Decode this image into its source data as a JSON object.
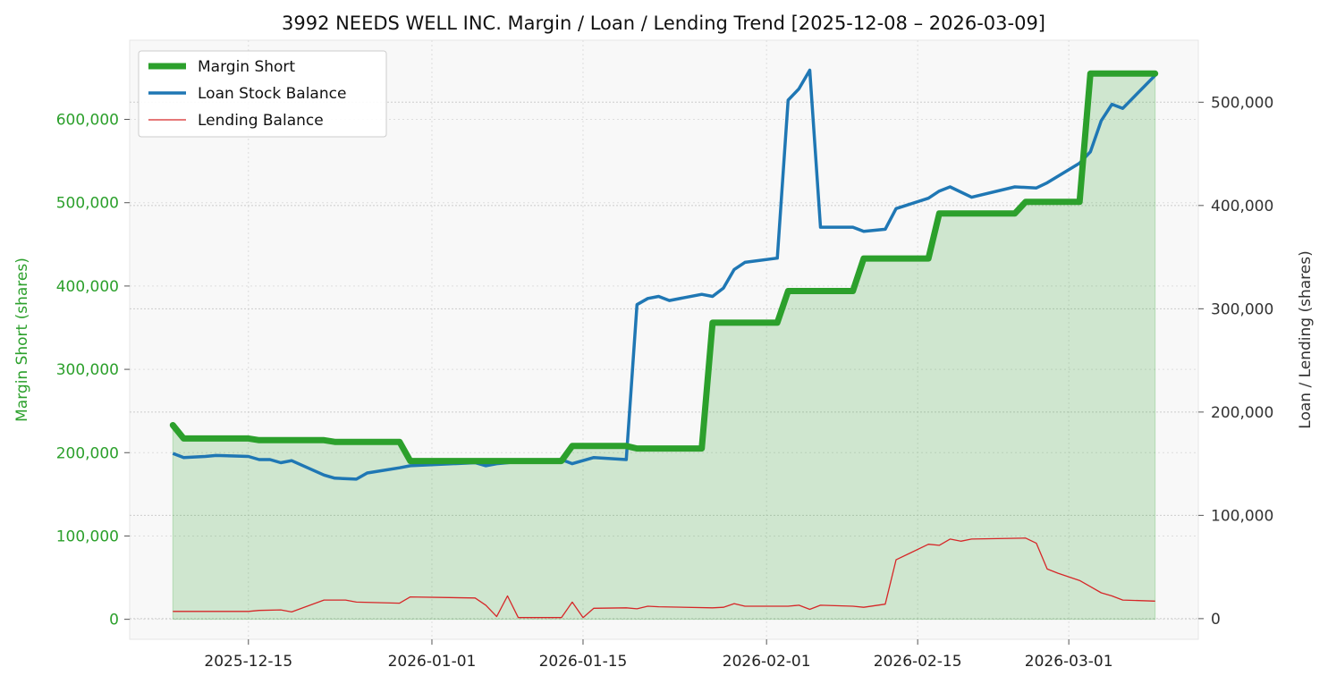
{
  "chart_data": {
    "type": "line",
    "title": "3992 NEEDS WELL INC. Margin / Loan / Lending Trend [2025-12-08 – 2026-03-09]",
    "y_left_label": "Margin Short (shares)",
    "y_right_label": "Loan / Lending (shares)",
    "y_left_ticks": [
      0,
      100000,
      200000,
      300000,
      400000,
      500000,
      600000
    ],
    "y_left_tick_labels": [
      "0",
      "100,000",
      "200,000",
      "300,000",
      "400,000",
      "500,000",
      "600,000"
    ],
    "y_right_ticks": [
      0,
      100000,
      200000,
      300000,
      400000,
      500000
    ],
    "y_right_tick_labels": [
      "0",
      "100,000",
      "200,000",
      "300,000",
      "400,000",
      "500,000"
    ],
    "x_ticks": [
      "2025-12-15",
      "2026-01-01",
      "2026-01-15",
      "2026-02-01",
      "2026-02-15",
      "2026-03-01"
    ],
    "ylim_left": [
      -24000,
      695000
    ],
    "ylim_right": [
      -20000,
      560000
    ],
    "xlim": [
      "2025-12-04",
      "2026-03-13"
    ],
    "grid": true,
    "legend_position": "top-left",
    "series": [
      {
        "name": "Margin Short",
        "axis": "left",
        "color": "#2ca02c",
        "fill": true,
        "points": [
          [
            "2025-12-08",
            233000
          ],
          [
            "2025-12-09",
            217000
          ],
          [
            "2025-12-15",
            217000
          ],
          [
            "2025-12-16",
            215000
          ],
          [
            "2025-12-22",
            215000
          ],
          [
            "2025-12-23",
            213000
          ],
          [
            "2025-12-29",
            213000
          ],
          [
            "2025-12-30",
            190000
          ],
          [
            "2026-01-13",
            190000
          ],
          [
            "2026-01-14",
            208000
          ],
          [
            "2026-01-19",
            208000
          ],
          [
            "2026-01-20",
            205000
          ],
          [
            "2026-01-26",
            205000
          ],
          [
            "2026-01-27",
            356000
          ],
          [
            "2026-02-02",
            356000
          ],
          [
            "2026-02-03",
            394000
          ],
          [
            "2026-02-09",
            394000
          ],
          [
            "2026-02-10",
            433000
          ],
          [
            "2026-02-16",
            433000
          ],
          [
            "2026-02-17",
            487000
          ],
          [
            "2026-02-24",
            487000
          ],
          [
            "2026-02-25",
            501000
          ],
          [
            "2026-03-02",
            501000
          ],
          [
            "2026-03-03",
            655000
          ],
          [
            "2026-03-09",
            655000
          ]
        ]
      },
      {
        "name": "Loan Stock Balance",
        "axis": "right",
        "color": "#1f77b4",
        "points": [
          [
            "2025-12-08",
            160000
          ],
          [
            "2025-12-09",
            156000
          ],
          [
            "2025-12-10",
            156500
          ],
          [
            "2025-12-11",
            157000
          ],
          [
            "2025-12-12",
            158000
          ],
          [
            "2025-12-15",
            157000
          ],
          [
            "2025-12-16",
            154000
          ],
          [
            "2025-12-17",
            154000
          ],
          [
            "2025-12-18",
            151000
          ],
          [
            "2025-12-19",
            153000
          ],
          [
            "2025-12-22",
            139000
          ],
          [
            "2025-12-23",
            136000
          ],
          [
            "2025-12-25",
            135000
          ],
          [
            "2025-12-26",
            141000
          ],
          [
            "2025-12-29",
            146000
          ],
          [
            "2025-12-30",
            148000
          ],
          [
            "2026-01-05",
            151000
          ],
          [
            "2026-01-06",
            148000
          ],
          [
            "2026-01-07",
            150000
          ],
          [
            "2026-01-08",
            151000
          ],
          [
            "2026-01-09",
            152000
          ],
          [
            "2026-01-13",
            154000
          ],
          [
            "2026-01-14",
            150000
          ],
          [
            "2026-01-16",
            156000
          ],
          [
            "2026-01-19",
            154000
          ],
          [
            "2026-01-20",
            304000
          ],
          [
            "2026-01-21",
            310000
          ],
          [
            "2026-01-22",
            312000
          ],
          [
            "2026-01-23",
            308000
          ],
          [
            "2026-01-26",
            314000
          ],
          [
            "2026-01-27",
            312000
          ],
          [
            "2026-01-28",
            320000
          ],
          [
            "2026-01-29",
            338000
          ],
          [
            "2026-01-30",
            345000
          ],
          [
            "2026-02-02",
            349000
          ],
          [
            "2026-02-03",
            502000
          ],
          [
            "2026-02-04",
            513000
          ],
          [
            "2026-02-05",
            531000
          ],
          [
            "2026-02-06",
            379000
          ],
          [
            "2026-02-09",
            379000
          ],
          [
            "2026-02-10",
            375000
          ],
          [
            "2026-02-12",
            377000
          ],
          [
            "2026-02-13",
            397000
          ],
          [
            "2026-02-16",
            407000
          ],
          [
            "2026-02-17",
            414000
          ],
          [
            "2026-02-18",
            418000
          ],
          [
            "2026-02-20",
            408000
          ],
          [
            "2026-02-24",
            418000
          ],
          [
            "2026-02-26",
            417000
          ],
          [
            "2026-02-27",
            422000
          ],
          [
            "2026-03-02",
            441000
          ],
          [
            "2026-03-03",
            452000
          ],
          [
            "2026-03-04",
            482000
          ],
          [
            "2026-03-05",
            498000
          ],
          [
            "2026-03-06",
            494000
          ],
          [
            "2026-03-09",
            526000
          ]
        ]
      },
      {
        "name": "Lending Balance",
        "axis": "right",
        "color": "#d62728",
        "points": [
          [
            "2025-12-08",
            7000
          ],
          [
            "2025-12-15",
            7000
          ],
          [
            "2025-12-16",
            8000
          ],
          [
            "2025-12-18",
            8500
          ],
          [
            "2025-12-19",
            6500
          ],
          [
            "2025-12-22",
            18000
          ],
          [
            "2025-12-24",
            18000
          ],
          [
            "2025-12-25",
            16000
          ],
          [
            "2025-12-29",
            15000
          ],
          [
            "2025-12-30",
            21000
          ],
          [
            "2026-01-05",
            20000
          ],
          [
            "2026-01-06",
            13000
          ],
          [
            "2026-01-07",
            2000
          ],
          [
            "2026-01-08",
            22000
          ],
          [
            "2026-01-09",
            1000
          ],
          [
            "2026-01-13",
            1000
          ],
          [
            "2026-01-14",
            16000
          ],
          [
            "2026-01-15",
            1000
          ],
          [
            "2026-01-16",
            10000
          ],
          [
            "2026-01-19",
            10500
          ],
          [
            "2026-01-20",
            9500
          ],
          [
            "2026-01-21",
            12000
          ],
          [
            "2026-01-22",
            11500
          ],
          [
            "2026-01-27",
            10500
          ],
          [
            "2026-01-28",
            11000
          ],
          [
            "2026-01-29",
            14500
          ],
          [
            "2026-01-30",
            12000
          ],
          [
            "2026-02-03",
            12000
          ],
          [
            "2026-02-04",
            13000
          ],
          [
            "2026-02-05",
            9000
          ],
          [
            "2026-02-06",
            13000
          ],
          [
            "2026-02-09",
            12000
          ],
          [
            "2026-02-10",
            11000
          ],
          [
            "2026-02-12",
            14000
          ],
          [
            "2026-02-13",
            57000
          ],
          [
            "2026-02-16",
            72000
          ],
          [
            "2026-02-17",
            71000
          ],
          [
            "2026-02-18",
            77000
          ],
          [
            "2026-02-19",
            75000
          ],
          [
            "2026-02-20",
            77000
          ],
          [
            "2026-02-25",
            78000
          ],
          [
            "2026-02-26",
            73000
          ],
          [
            "2026-02-27",
            48000
          ],
          [
            "2026-02-28",
            44000
          ],
          [
            "2026-03-02",
            37000
          ],
          [
            "2026-03-03",
            31000
          ],
          [
            "2026-03-04",
            25000
          ],
          [
            "2026-03-05",
            22000
          ],
          [
            "2026-03-06",
            18000
          ],
          [
            "2026-03-09",
            17000
          ]
        ]
      }
    ]
  }
}
